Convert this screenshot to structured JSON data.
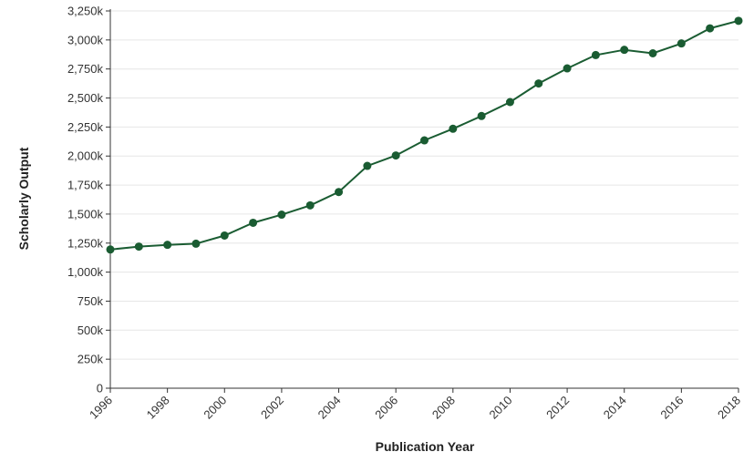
{
  "chart_data": {
    "type": "line",
    "xlabel": "Publication Year",
    "ylabel": "Scholarly Output",
    "xlim": [
      1996,
      2018
    ],
    "ylim": [
      0,
      3250
    ],
    "x_ticks": [
      1996,
      1998,
      2000,
      2002,
      2004,
      2006,
      2008,
      2010,
      2012,
      2014,
      2016,
      2018
    ],
    "x_tick_labels": [
      "1996",
      "1998",
      "2000",
      "2002",
      "2004",
      "2006",
      "2008",
      "2010",
      "2012",
      "2014",
      "2016",
      "2018"
    ],
    "y_ticks": [
      0,
      250,
      500,
      750,
      1000,
      1250,
      1500,
      1750,
      2000,
      2250,
      2500,
      2750,
      3000,
      3250
    ],
    "y_tick_labels": [
      "0",
      "250k",
      "500k",
      "750k",
      "1,000k",
      "1,250k",
      "1,500k",
      "1,750k",
      "2,000k",
      "2,250k",
      "2,500k",
      "2,750k",
      "3,000k",
      "3,250k"
    ],
    "grid": true,
    "series": [
      {
        "color": "#1a5c32",
        "x": [
          1996,
          1997,
          1998,
          1999,
          2000,
          2001,
          2002,
          2003,
          2004,
          2005,
          2006,
          2007,
          2008,
          2009,
          2010,
          2011,
          2012,
          2013,
          2014,
          2015,
          2016,
          2017,
          2018
        ],
        "values": [
          1195,
          1220,
          1235,
          1245,
          1315,
          1425,
          1495,
          1575,
          1690,
          1915,
          2005,
          2135,
          2235,
          2345,
          2465,
          2625,
          2755,
          2870,
          2915,
          2885,
          2970,
          3100,
          3165
        ]
      }
    ]
  }
}
